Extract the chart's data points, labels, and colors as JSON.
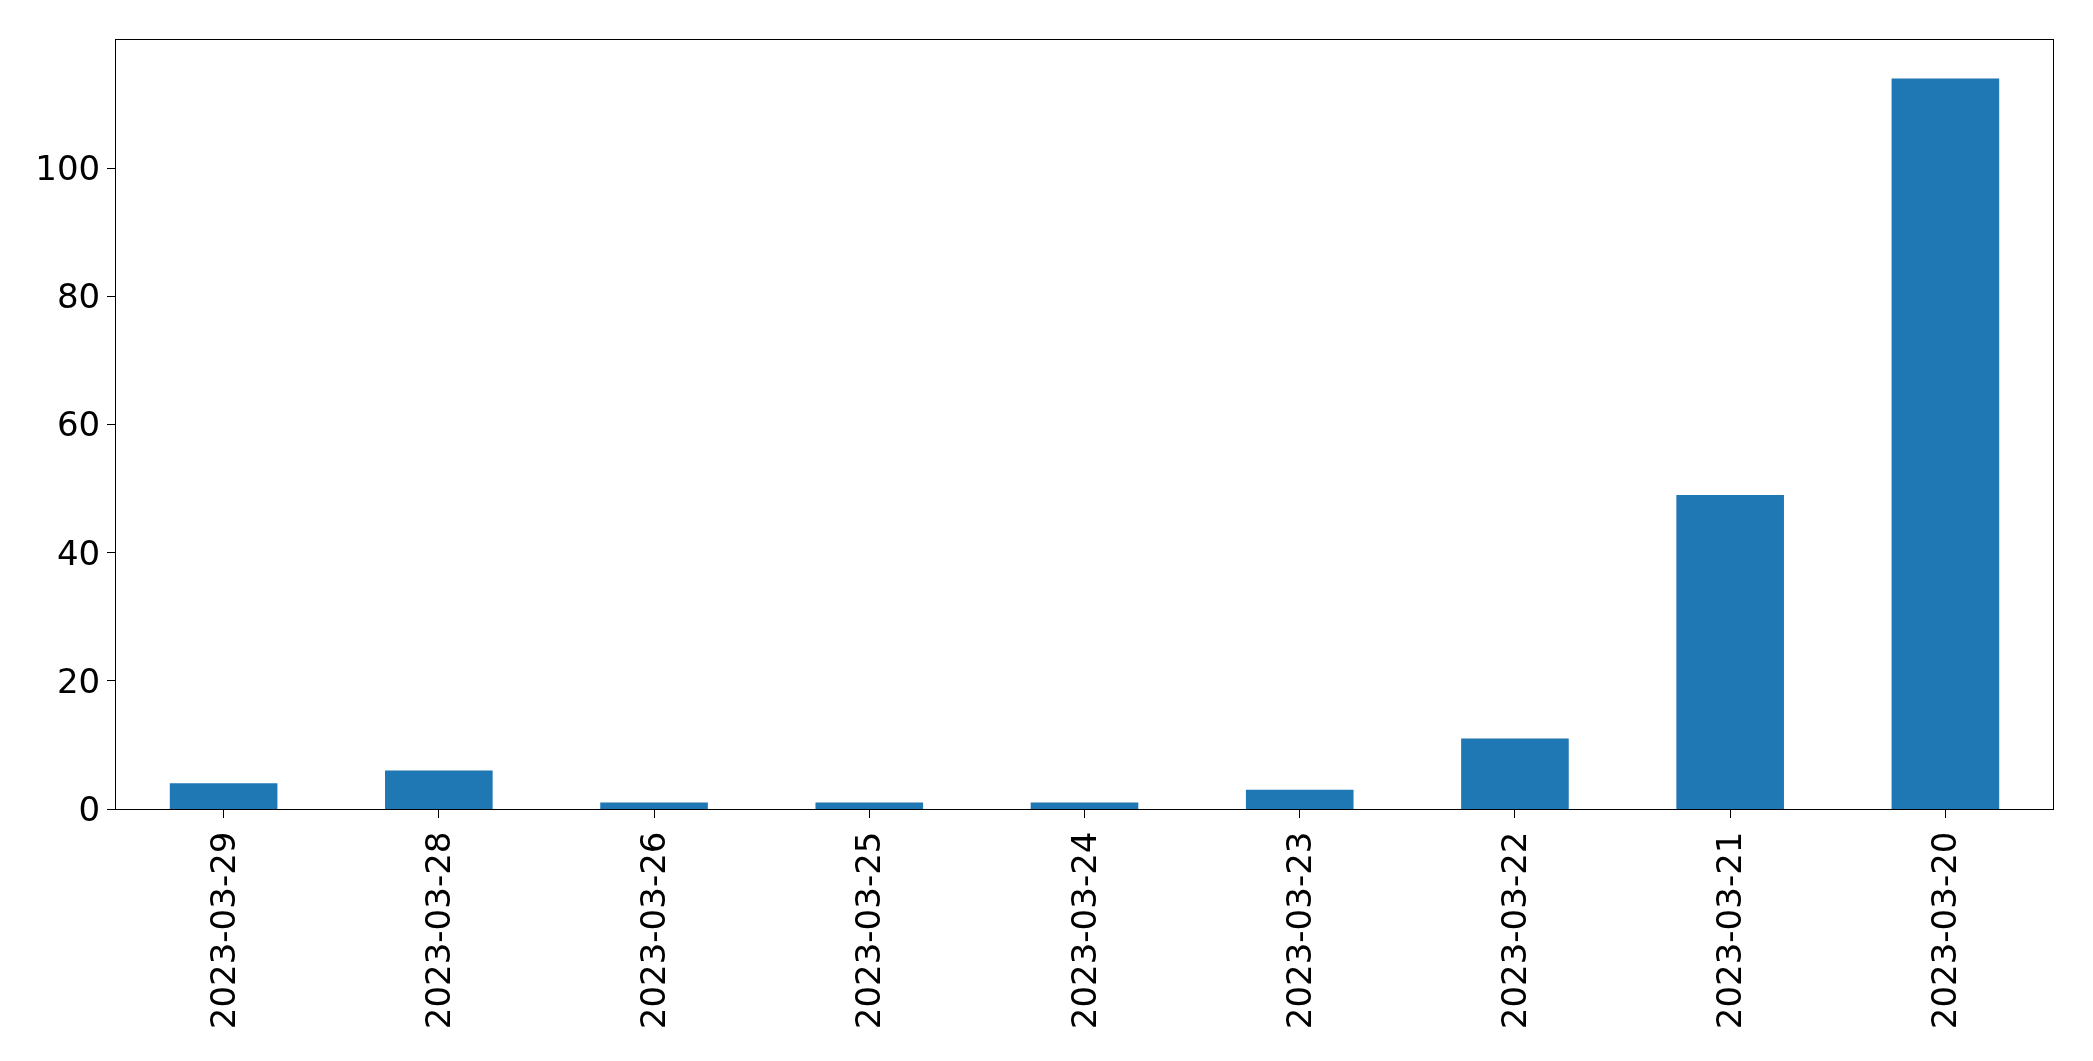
{
  "chart_data": {
    "type": "bar",
    "categories": [
      "2023-03-29",
      "2023-03-28",
      "2023-03-26",
      "2023-03-25",
      "2023-03-24",
      "2023-03-23",
      "2023-03-22",
      "2023-03-21",
      "2023-03-20"
    ],
    "values": [
      4,
      6,
      1,
      1,
      1,
      3,
      11,
      49,
      114
    ],
    "color": "#1f77b4",
    "ylim": [
      0,
      120
    ],
    "yticks": [
      0,
      20,
      40,
      60,
      80,
      100
    ]
  }
}
